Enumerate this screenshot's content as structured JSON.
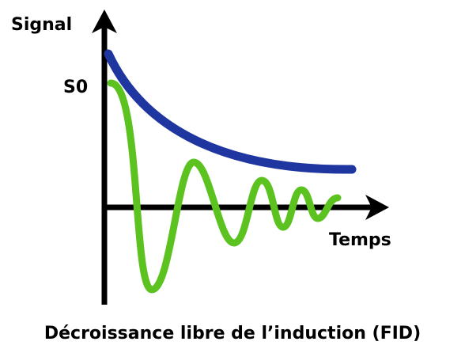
{
  "axes": {
    "y_label": "Signal",
    "y_marker": "S0",
    "x_label": "Temps"
  },
  "caption": "Décroissance libre de l’induction (FID)"
}
